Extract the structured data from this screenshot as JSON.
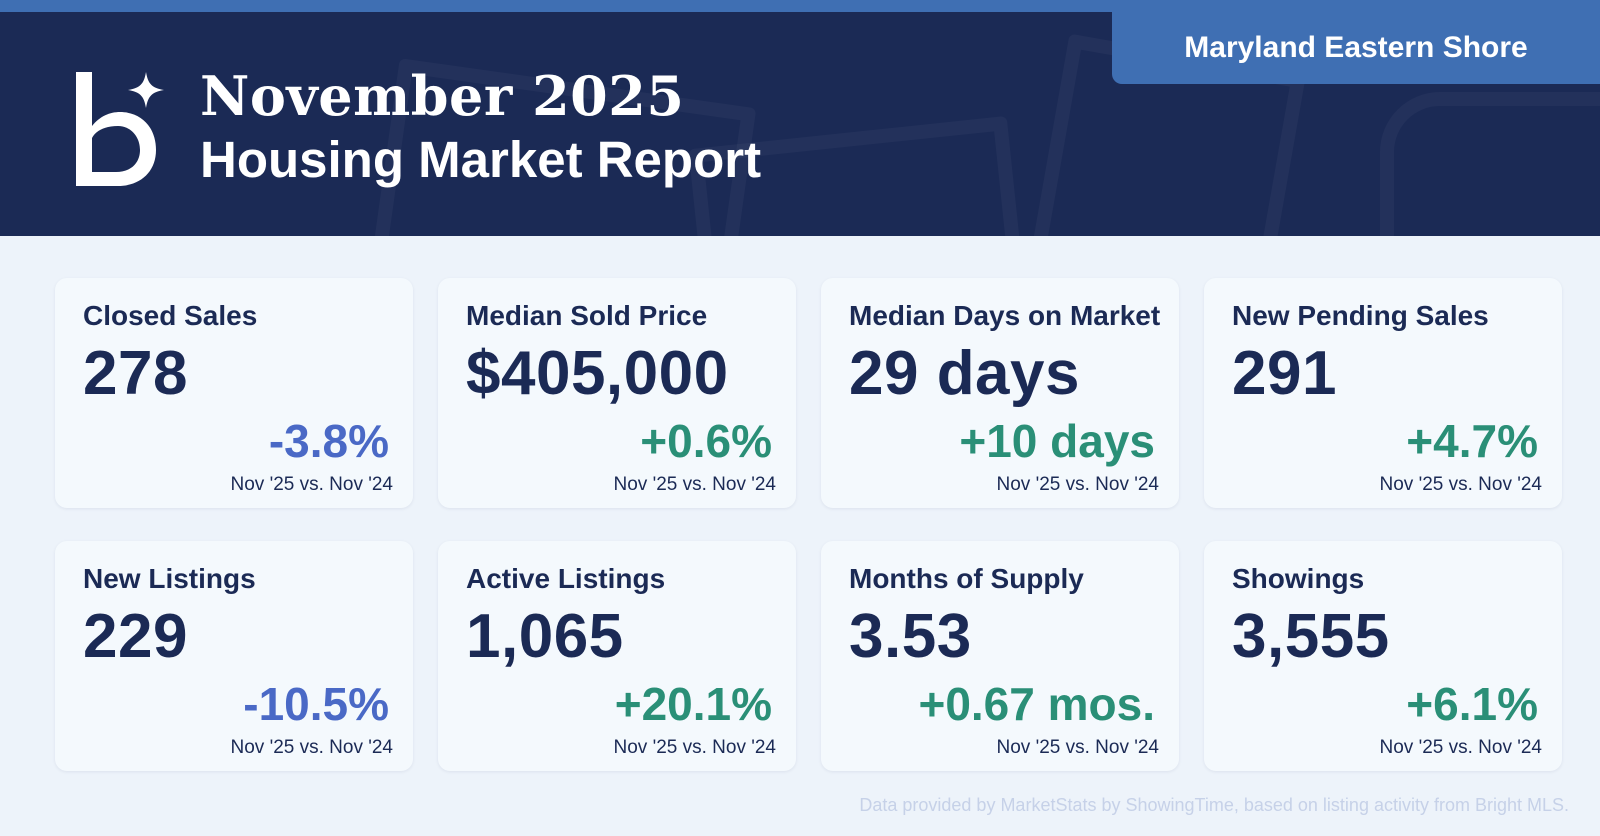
{
  "header": {
    "title_line1": "November 2025",
    "title_line2": "Housing Market Report",
    "region": "Maryland Eastern Shore",
    "logo_icon": "bright-mls-b-star-logo"
  },
  "colors": {
    "header_bg": "#1b2a55",
    "accent_blue": "#3f6fb3",
    "positive": "#2a8f77",
    "negative": "#4a69c6",
    "page_bg": "#edf3fa",
    "card_bg": "#f4f9fd"
  },
  "metrics": [
    {
      "label": "Closed Sales",
      "value": "278",
      "change": "-3.8%",
      "direction": "down",
      "compare": "Nov '25 vs. Nov '24"
    },
    {
      "label": "Median Sold Price",
      "value": "$405,000",
      "change": "+0.6%",
      "direction": "up",
      "compare": "Nov '25 vs. Nov '24"
    },
    {
      "label": "Median Days on Market",
      "value": "29 days",
      "change": "+10 days",
      "direction": "up",
      "compare": "Nov '25 vs. Nov '24"
    },
    {
      "label": "New Pending Sales",
      "value": "291",
      "change": "+4.7%",
      "direction": "up",
      "compare": "Nov '25 vs. Nov '24"
    },
    {
      "label": "New Listings",
      "value": "229",
      "change": "-10.5%",
      "direction": "down",
      "compare": "Nov '25 vs. Nov '24"
    },
    {
      "label": "Active Listings",
      "value": "1,065",
      "change": "+20.1%",
      "direction": "up",
      "compare": "Nov '25 vs. Nov '24"
    },
    {
      "label": "Months of Supply",
      "value": "3.53",
      "change": "+0.67 mos.",
      "direction": "up",
      "compare": "Nov '25 vs. Nov '24"
    },
    {
      "label": "Showings",
      "value": "3,555",
      "change": "+6.1%",
      "direction": "up",
      "compare": "Nov '25 vs. Nov '24"
    }
  ],
  "footer": {
    "source_note": "Data provided by MarketStats by ShowingTime, based on listing activity from Bright MLS."
  }
}
